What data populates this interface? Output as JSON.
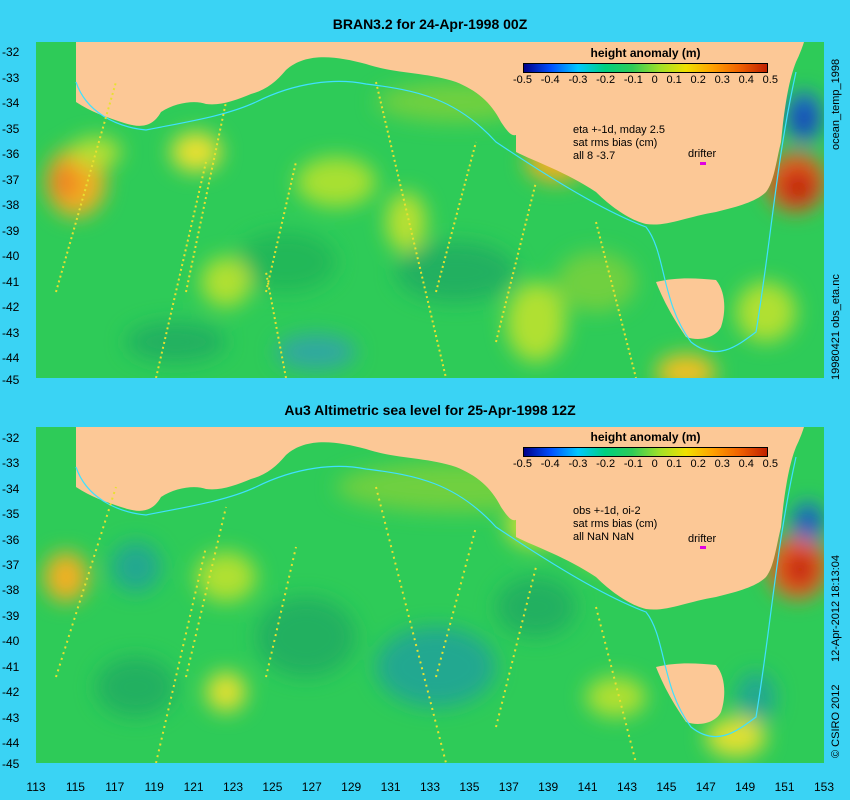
{
  "panels": [
    {
      "title": "BRAN3.2 for 24-Apr-1998 00Z",
      "legend_title": "height anomaly (m)",
      "legend_ticks": [
        "-0.5",
        "-0.4",
        "-0.3",
        "-0.2",
        "-0.1",
        "0",
        "0.1",
        "0.2",
        "0.3",
        "0.4",
        "0.5"
      ],
      "annotation_lines": [
        "eta +-1d, mday 2.5",
        "sat rms bias (cm)",
        "all 8 -3.7"
      ],
      "drifter_label": "drifter",
      "side_top": "ocean_temp_1998",
      "side_bottom": "19980421 obs_eta.nc"
    },
    {
      "title": "Au3 Altimetric sea level  for 25-Apr-1998 12Z",
      "legend_title": "height anomaly (m)",
      "legend_ticks": [
        "-0.5",
        "-0.4",
        "-0.3",
        "-0.2",
        "-0.1",
        "0",
        "0.1",
        "0.2",
        "0.3",
        "0.4",
        "0.5"
      ],
      "annotation_lines": [
        "obs +-1d, oi-2",
        "sat rms bias (cm)",
        "all NaN NaN"
      ],
      "drifter_label": "drifter",
      "side_text": "12-Apr-2012 18:13:04",
      "side_copyright": "© CSIRO 2012"
    }
  ],
  "y_ticks": [
    "-32",
    "-33",
    "-34",
    "-35",
    "-36",
    "-37",
    "-38",
    "-39",
    "-40",
    "-41",
    "-42",
    "-43",
    "-44",
    "-45"
  ],
  "x_ticks": [
    "113",
    "115",
    "117",
    "119",
    "121",
    "123",
    "125",
    "127",
    "129",
    "131",
    "133",
    "135",
    "137",
    "139",
    "141",
    "143",
    "145",
    "147",
    "149",
    "151",
    "153"
  ],
  "colors": {
    "land": "#fcc896",
    "ocean_base": "#2ecb58",
    "background": "#3ad3f4",
    "drifter": "#e000e0",
    "shelf_contour": "#40e0ff"
  }
}
